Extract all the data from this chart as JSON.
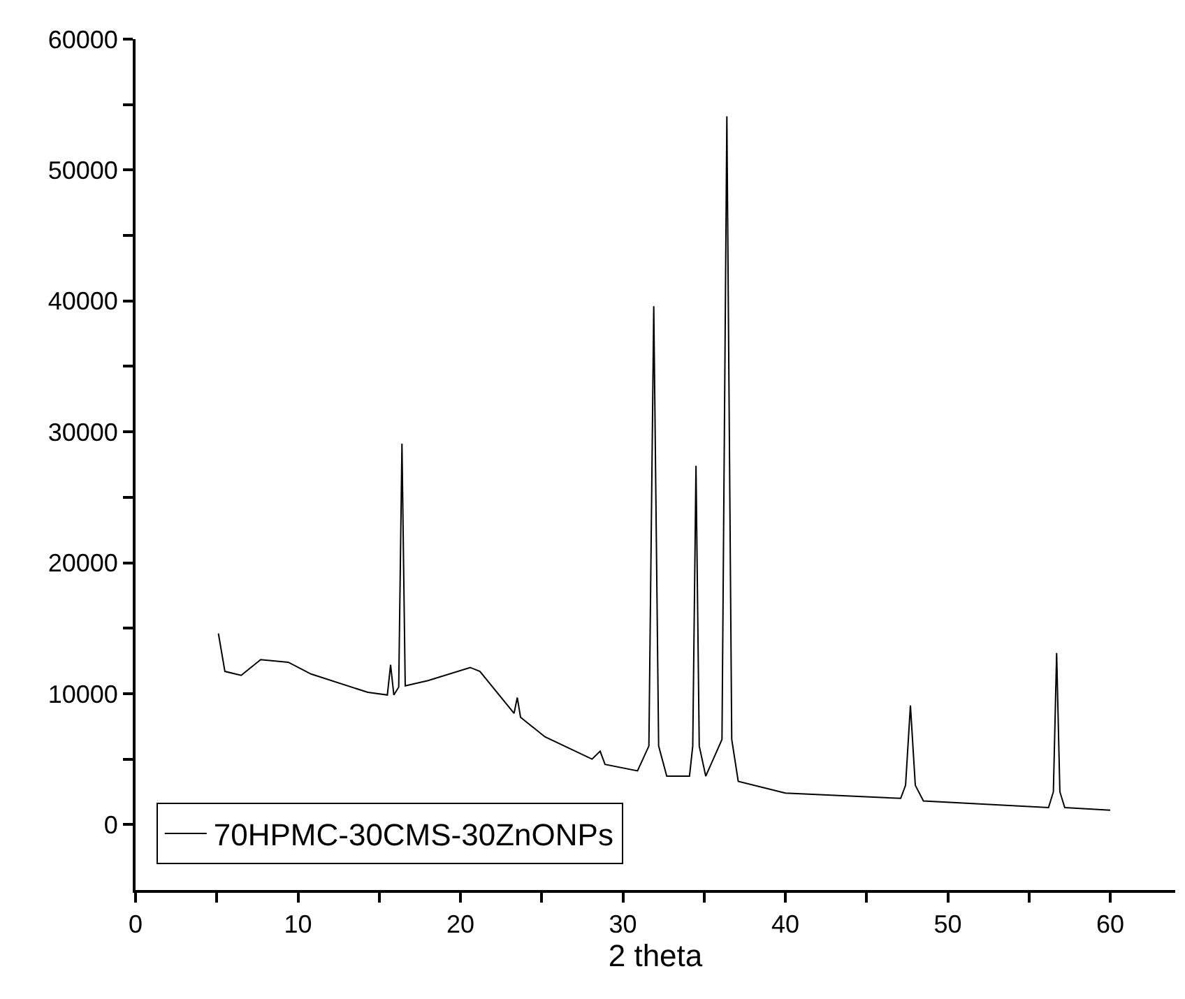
{
  "chart_data": {
    "type": "line",
    "xlabel": "2 theta",
    "x": [
      5.1,
      5.5,
      6.5,
      7.7,
      9.4,
      10.8,
      14.3,
      15.5,
      15.7,
      15.9,
      16.2,
      16.4,
      16.6,
      18.0,
      20.6,
      21.2,
      23.3,
      23.5,
      23.7,
      25.2,
      28.1,
      28.6,
      28.9,
      30.9,
      31.6,
      31.9,
      32.2,
      32.7,
      34.1,
      34.3,
      34.5,
      34.7,
      35.1,
      36.1,
      36.4,
      36.7,
      37.1,
      40.0,
      47.1,
      47.4,
      47.7,
      48.0,
      48.5,
      56.2,
      56.5,
      56.7,
      56.9,
      57.2,
      60.0
    ],
    "series": [
      {
        "name": "70HPMC-30CMS-30ZnONPs",
        "color": "#000000",
        "values": [
          14600,
          11700,
          11400,
          12600,
          12400,
          11500,
          10100,
          9900,
          12200,
          9900,
          10500,
          29100,
          10600,
          11000,
          12000,
          11700,
          8500,
          9700,
          8200,
          6700,
          5000,
          5600,
          4600,
          4100,
          6000,
          39600,
          6000,
          3700,
          3700,
          6000,
          27400,
          6000,
          3700,
          6500,
          54100,
          6500,
          3300,
          2400,
          2000,
          3000,
          9100,
          3000,
          1800,
          1300,
          2500,
          13100,
          2500,
          1300,
          1100
        ]
      }
    ],
    "xlim": [
      0,
      64
    ],
    "ylim": [
      -5000,
      60000
    ],
    "xticks": [
      0,
      {
        "value": 5,
        "label": null
      },
      10,
      {
        "value": 15,
        "label": null
      },
      20,
      {
        "value": 25,
        "label": null
      },
      30,
      {
        "value": 35,
        "label": null
      },
      40,
      {
        "value": 45,
        "label": null
      },
      50,
      {
        "value": 55,
        "label": null
      },
      60
    ],
    "yticks": [
      0,
      {
        "value": 5000,
        "label": null
      },
      10000,
      {
        "value": 15000,
        "label": null
      },
      20000,
      {
        "value": 25000,
        "label": null
      },
      30000,
      {
        "value": 35000,
        "label": null
      },
      40000,
      {
        "value": 45000,
        "label": null
      },
      50000,
      {
        "value": 55000,
        "label": null
      },
      60000
    ],
    "legend": "bottom left",
    "marker": "none",
    "line_style": "solid"
  }
}
